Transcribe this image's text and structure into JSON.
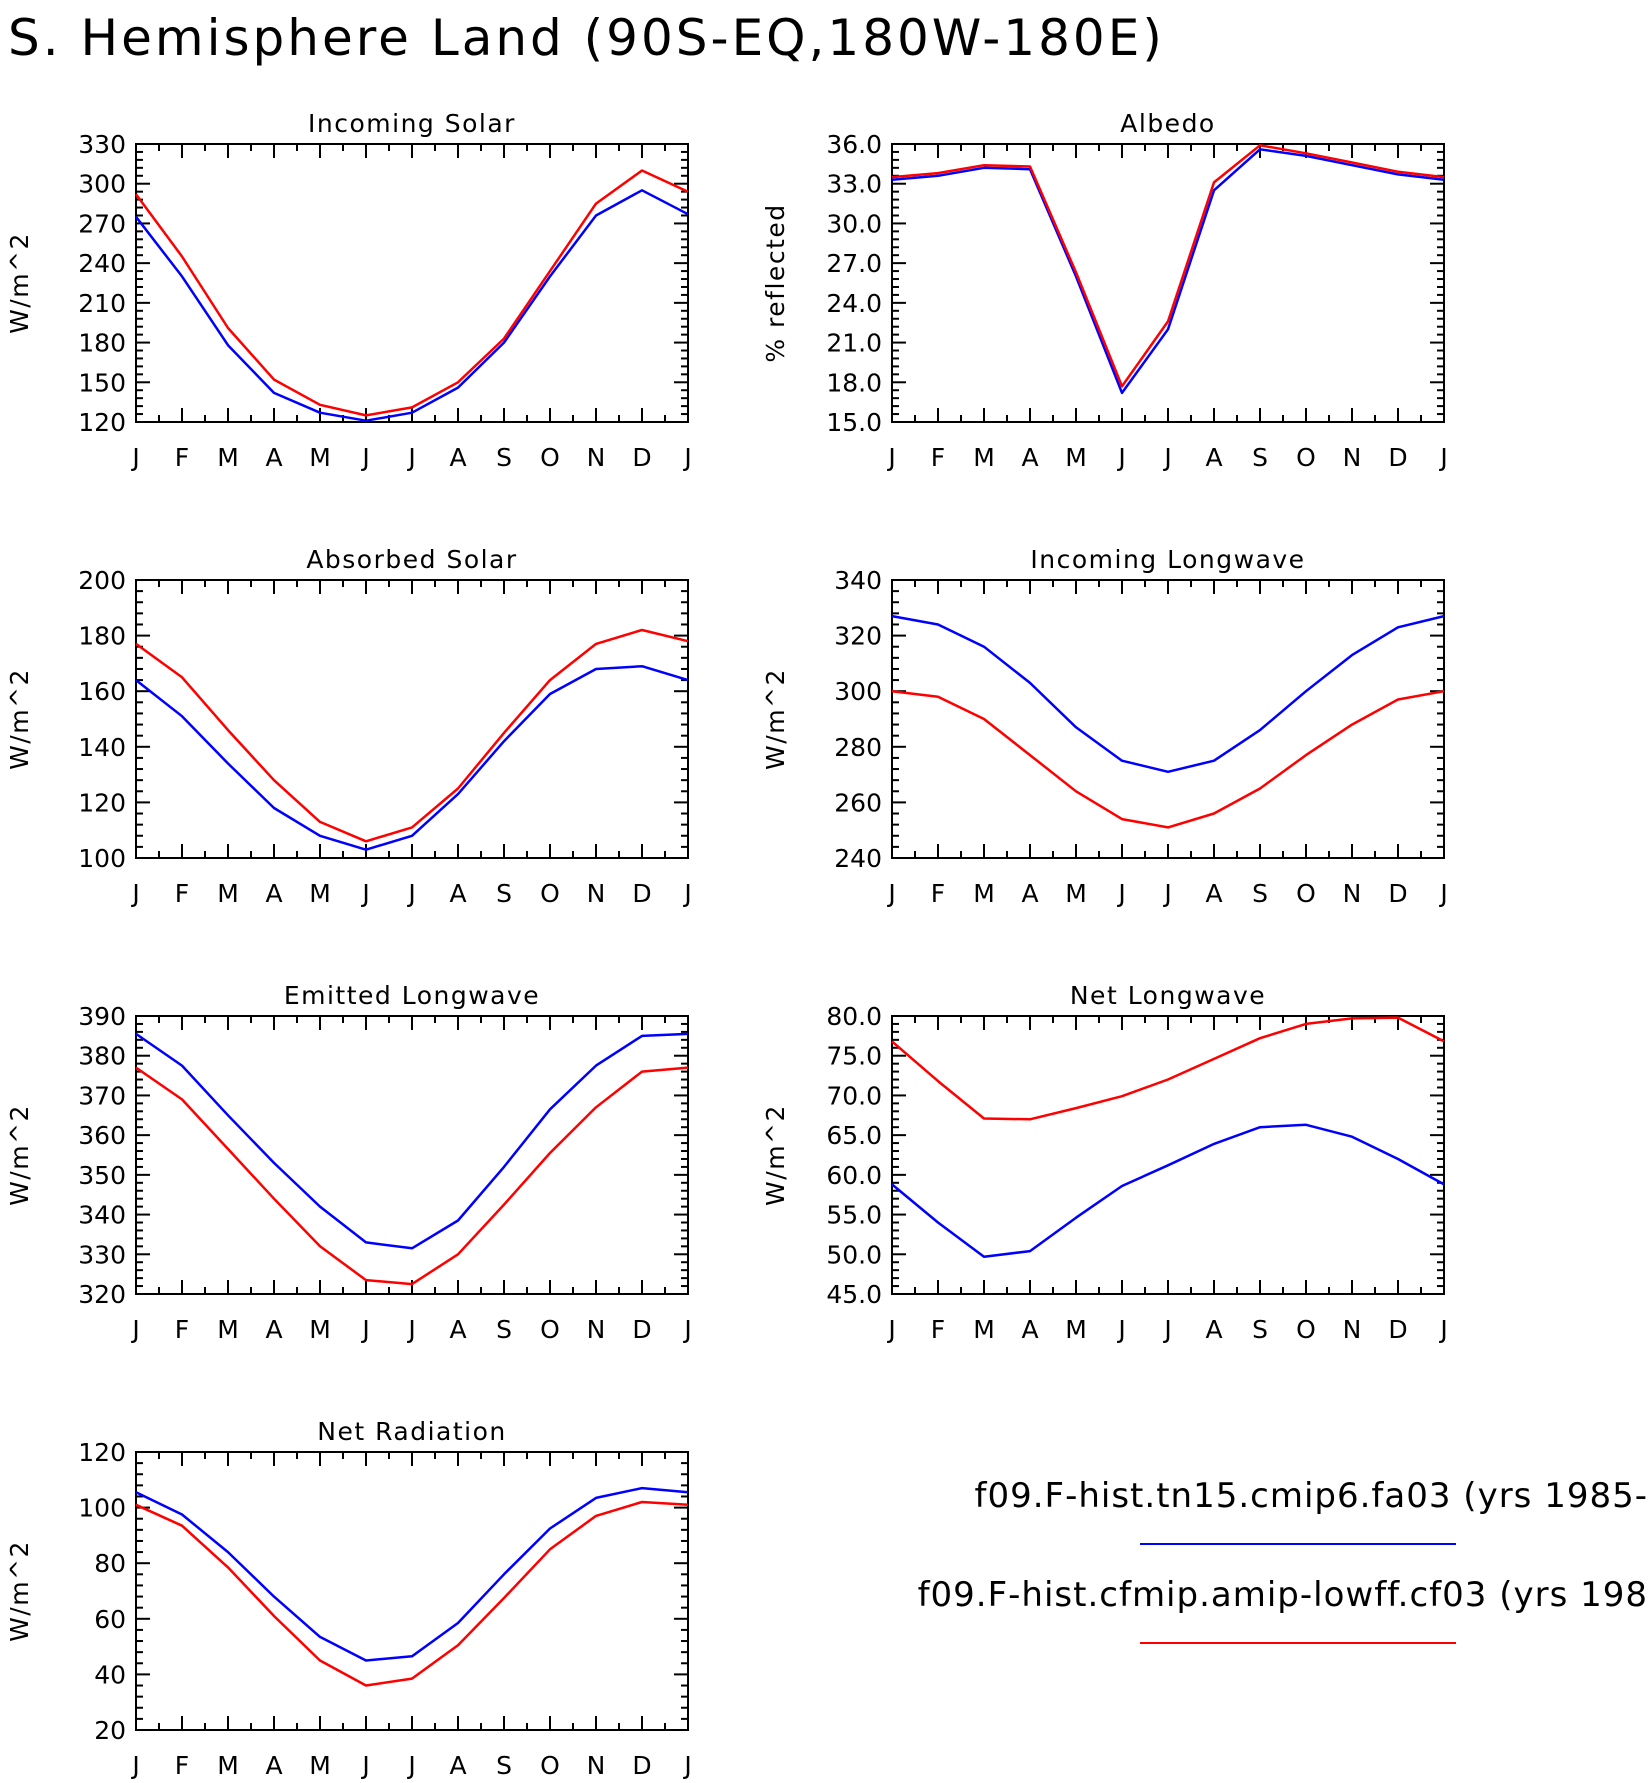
{
  "main_title": "S. Hemisphere Land (90S-EQ,180W-180E)",
  "legend": [
    {
      "label": "f09.F-hist.tn15.cmip6.fa03 (yrs 1985-",
      "color": "#0000ff"
    },
    {
      "label": "f09.F-hist.cfmip.amip-lowff.cf03 (yrs 198",
      "color": "#ff0000"
    }
  ],
  "colors": {
    "series_a": "#0000ff",
    "series_b": "#ff0000"
  },
  "chart_data": [
    {
      "type": "line",
      "title": "Incoming Solar",
      "ylabel": "W/m^2",
      "ylim": [
        120,
        330
      ],
      "yticks": [
        "120",
        "150",
        "180",
        "210",
        "240",
        "270",
        "300",
        "330"
      ],
      "categories": [
        "J",
        "F",
        "M",
        "A",
        "M",
        "J",
        "J",
        "A",
        "S",
        "O",
        "N",
        "D",
        "J"
      ],
      "series": [
        {
          "color": "#0000ff",
          "values": [
            275,
            230,
            178,
            142,
            127,
            121,
            127,
            146,
            180,
            230,
            276,
            295,
            277
          ]
        },
        {
          "color": "#ff0000",
          "values": [
            292,
            245,
            191,
            152,
            133,
            125,
            131,
            150,
            183,
            234,
            285,
            310,
            294
          ]
        }
      ]
    },
    {
      "type": "line",
      "title": "Albedo",
      "ylabel": "% reflected",
      "ylim": [
        15,
        36
      ],
      "yticks": [
        "15.0",
        "18.0",
        "21.0",
        "24.0",
        "27.0",
        "30.0",
        "33.0",
        "36.0"
      ],
      "categories": [
        "J",
        "F",
        "M",
        "A",
        "M",
        "J",
        "J",
        "A",
        "S",
        "O",
        "N",
        "D",
        "J"
      ],
      "series": [
        {
          "color": "#0000ff",
          "values": [
            33.3,
            33.6,
            34.2,
            34.1,
            26.0,
            17.2,
            22.0,
            32.5,
            35.6,
            35.1,
            34.4,
            33.7,
            33.3
          ]
        },
        {
          "color": "#ff0000",
          "values": [
            33.5,
            33.8,
            34.4,
            34.3,
            26.3,
            17.7,
            22.6,
            33.1,
            35.9,
            35.3,
            34.6,
            33.9,
            33.5
          ]
        }
      ]
    },
    {
      "type": "line",
      "title": "Absorbed Solar",
      "ylabel": "W/m^2",
      "ylim": [
        100,
        200
      ],
      "yticks": [
        "100",
        "120",
        "140",
        "160",
        "180",
        "200"
      ],
      "categories": [
        "J",
        "F",
        "M",
        "A",
        "M",
        "J",
        "J",
        "A",
        "S",
        "O",
        "N",
        "D",
        "J"
      ],
      "series": [
        {
          "color": "#0000ff",
          "values": [
            164,
            151,
            134,
            118,
            108,
            103,
            108,
            123,
            142,
            159,
            168,
            169,
            164
          ]
        },
        {
          "color": "#ff0000",
          "values": [
            177,
            165,
            146,
            128,
            113,
            106,
            111,
            125,
            145,
            164,
            177,
            182,
            178
          ]
        }
      ]
    },
    {
      "type": "line",
      "title": "Incoming Longwave",
      "ylabel": "W/m^2",
      "ylim": [
        240,
        340
      ],
      "yticks": [
        "240",
        "260",
        "280",
        "300",
        "320",
        "340"
      ],
      "categories": [
        "J",
        "F",
        "M",
        "A",
        "M",
        "J",
        "J",
        "A",
        "S",
        "O",
        "N",
        "D",
        "J"
      ],
      "series": [
        {
          "color": "#0000ff",
          "values": [
            327,
            324,
            316,
            303,
            287,
            275,
            271,
            275,
            286,
            300,
            313,
            323,
            327
          ]
        },
        {
          "color": "#ff0000",
          "values": [
            300,
            298,
            290,
            277,
            264,
            254,
            251,
            256,
            265,
            277,
            288,
            297,
            300
          ]
        }
      ]
    },
    {
      "type": "line",
      "title": "Emitted Longwave",
      "ylabel": "W/m^2",
      "ylim": [
        320,
        390
      ],
      "yticks": [
        "320",
        "330",
        "340",
        "350",
        "360",
        "370",
        "380",
        "390"
      ],
      "categories": [
        "J",
        "F",
        "M",
        "A",
        "M",
        "J",
        "J",
        "A",
        "S",
        "O",
        "N",
        "D",
        "J"
      ],
      "series": [
        {
          "color": "#0000ff",
          "values": [
            385.5,
            377.5,
            365,
            353,
            342,
            333,
            331.5,
            338.5,
            352,
            366.5,
            377.5,
            385,
            385.5
          ]
        },
        {
          "color": "#ff0000",
          "values": [
            377,
            369,
            356.5,
            344,
            332,
            323.5,
            322.5,
            330,
            342.5,
            355.5,
            367,
            376,
            377
          ]
        }
      ]
    },
    {
      "type": "line",
      "title": "Net Longwave",
      "ylabel": "W/m^2",
      "ylim": [
        45,
        80
      ],
      "yticks": [
        "45.0",
        "50.0",
        "55.0",
        "60.0",
        "65.0",
        "70.0",
        "75.0",
        "80.0"
      ],
      "categories": [
        "J",
        "F",
        "M",
        "A",
        "M",
        "J",
        "J",
        "A",
        "S",
        "O",
        "N",
        "D",
        "J"
      ],
      "series": [
        {
          "color": "#0000ff",
          "values": [
            58.8,
            54.0,
            49.7,
            50.4,
            54.6,
            58.6,
            61.2,
            63.9,
            66.0,
            66.3,
            64.8,
            62.0,
            58.8
          ]
        },
        {
          "color": "#ff0000",
          "values": [
            76.8,
            71.8,
            67.1,
            67.0,
            68.4,
            69.9,
            72.0,
            74.6,
            77.2,
            79.0,
            79.7,
            79.8,
            76.8
          ]
        }
      ]
    },
    {
      "type": "line",
      "title": "Net Radiation",
      "ylabel": "W/m^2",
      "ylim": [
        20,
        120
      ],
      "yticks": [
        "20",
        "40",
        "60",
        "80",
        "100",
        "120"
      ],
      "categories": [
        "J",
        "F",
        "M",
        "A",
        "M",
        "J",
        "J",
        "A",
        "S",
        "O",
        "N",
        "D",
        "J"
      ],
      "series": [
        {
          "color": "#0000ff",
          "values": [
            105.5,
            97.5,
            84,
            68,
            53.5,
            45,
            46.5,
            58.5,
            76,
            92.5,
            103.5,
            107,
            105.5
          ]
        },
        {
          "color": "#ff0000",
          "values": [
            101,
            93.5,
            78.5,
            61,
            45,
            36,
            38.5,
            50.5,
            67.5,
            85,
            97,
            102,
            101
          ]
        }
      ]
    }
  ]
}
